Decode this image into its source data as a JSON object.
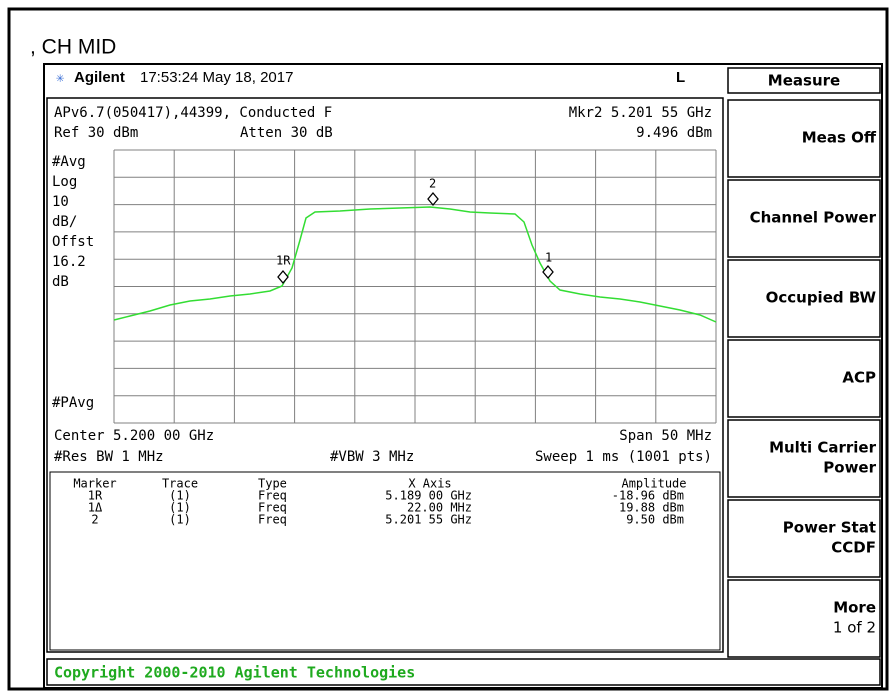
{
  "header": {
    "title": ", CH MID",
    "brand": "Agilent",
    "datetime": "17:53:24  May 18, 2017",
    "status": "L"
  },
  "screen": {
    "line1": "APv6.7(050417),44399, Conducted F",
    "mkr": "Mkr2  5.201 55 GHz",
    "ref": "Ref 30 dBm",
    "atten": "Atten 30 dB",
    "mkr_amp": "9.496 dBm",
    "side_labels": [
      "#Avg",
      "Log",
      "10",
      "dB/",
      "Offst",
      "16.2",
      "dB"
    ],
    "bottom_label": "#PAvg",
    "center": "Center 5.200 00 GHz",
    "span": "Span 50 MHz",
    "rbw": "#Res BW 1 MHz",
    "vbw": "#VBW 3 MHz",
    "sweep": "Sweep 1 ms (1001 pts)",
    "marker_labels": [
      "1R",
      "2",
      "1"
    ]
  },
  "markers": {
    "columns": [
      "Marker",
      "Trace",
      "Type",
      "X Axis",
      "Amplitude"
    ],
    "rows": [
      [
        "1R",
        "(1)",
        "Freq",
        "5.189 00 GHz",
        "-18.96 dBm"
      ],
      [
        "1Δ",
        "(1)",
        "Freq",
        "22.00 MHz",
        "19.88 dBm"
      ],
      [
        "2",
        "(1)",
        "Freq",
        "5.201 55 GHz",
        "9.50 dBm"
      ]
    ]
  },
  "softkeys": {
    "title": "Measure",
    "keys": [
      [
        "Meas Off"
      ],
      [
        "Channel Power"
      ],
      [
        "Occupied BW"
      ],
      [
        "ACP"
      ],
      [
        "Multi Carrier",
        "Power"
      ],
      [
        "Power Stat",
        "CCDF"
      ],
      [
        "More",
        "1 of 2"
      ]
    ]
  },
  "copyright": "Copyright 2000-2010 Agilent Technologies"
}
